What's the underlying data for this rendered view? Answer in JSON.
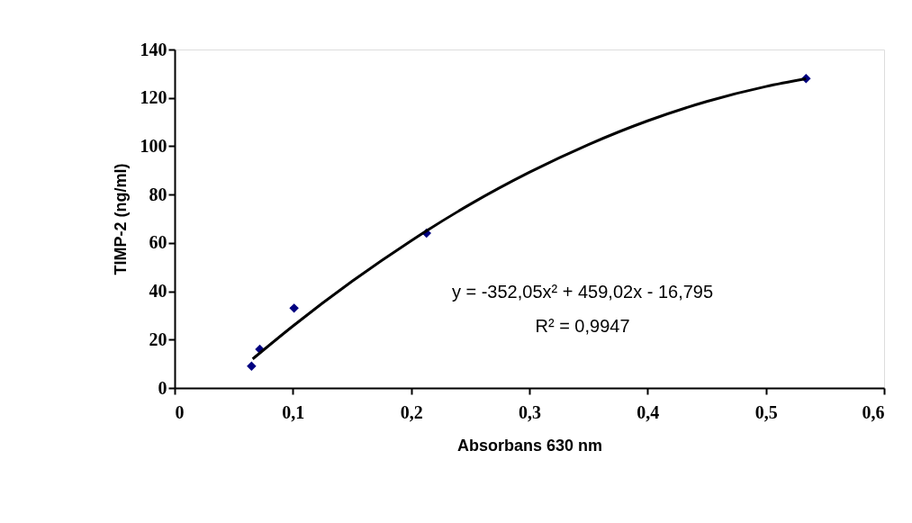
{
  "chart_data": {
    "type": "scatter",
    "xlabel": "Absorbans 630 nm",
    "ylabel": "TIMP-2 (ng/ml)",
    "series": [
      {
        "color": "#000080",
        "marker": "diamond",
        "x": [
          0.065,
          0.072,
          0.101,
          0.213,
          0.534
        ],
        "values": [
          9,
          16,
          33,
          64,
          128
        ]
      },
      {
        "type": "line",
        "color": "#000000",
        "x": [
          0.066,
          0.1,
          0.15,
          0.2,
          0.25,
          0.3,
          0.35,
          0.4,
          0.45,
          0.5,
          0.534
        ],
        "values": [
          12.0,
          25.6,
          44.1,
          60.9,
          76.0,
          89.2,
          100.7,
          110.5,
          118.5,
          124.7,
          127.9
        ]
      }
    ],
    "xlim": [
      0,
      0.6
    ],
    "xticks": [
      0,
      {
        "value": 0.1,
        "label": "0,1"
      },
      {
        "value": 0.2,
        "label": "0,2"
      },
      {
        "value": 0.3,
        "label": "0,3"
      },
      {
        "value": 0.4,
        "label": "0,4"
      },
      {
        "value": 0.5,
        "label": "0,5"
      },
      {
        "value": 0.6,
        "label": "0,6"
      }
    ],
    "ylim": [
      0,
      140
    ],
    "yticks": [
      0,
      20,
      40,
      60,
      80,
      100,
      120,
      140
    ],
    "annotations": [
      "y = -352,05x² + 459,02x - 16,795",
      "R² = 0,9947"
    ],
    "grid": false
  }
}
